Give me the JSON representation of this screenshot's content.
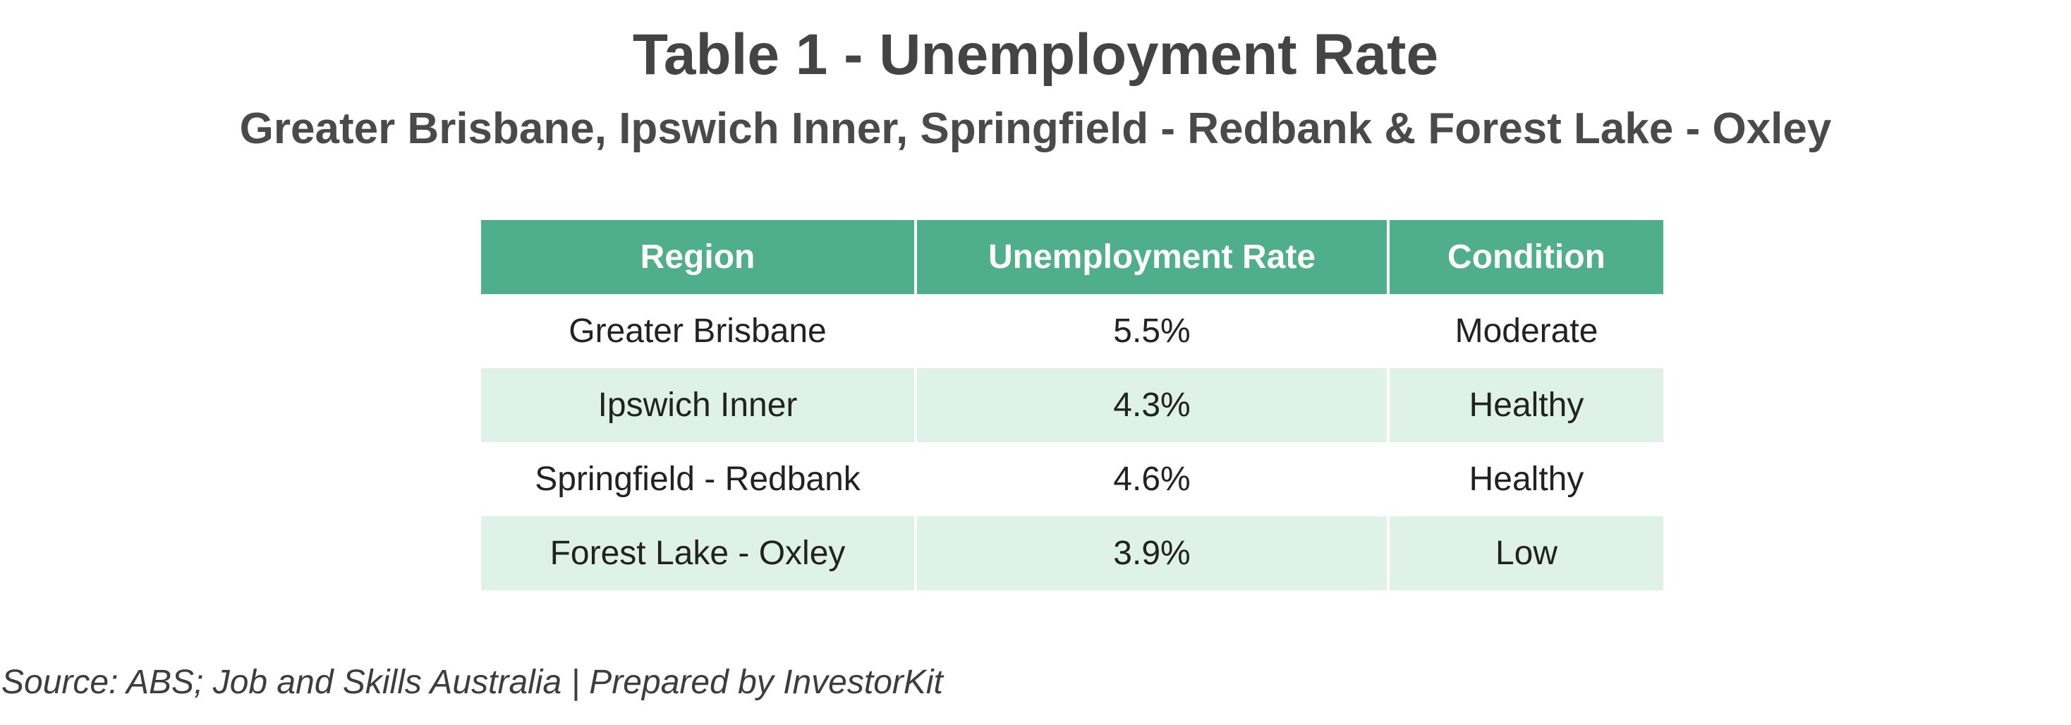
{
  "title": "Table 1 - Unemployment Rate",
  "subtitle": "Greater Brisbane, Ipswich Inner, Springfield - Redbank & Forest Lake - Oxley",
  "table": {
    "headers": [
      "Region",
      "Unemployment Rate",
      "Condition"
    ],
    "rows": [
      [
        "Greater Brisbane",
        "5.5%",
        "Moderate"
      ],
      [
        "Ipswich Inner",
        "4.3%",
        "Healthy"
      ],
      [
        "Springfield - Redbank",
        "4.6%",
        "Healthy"
      ],
      [
        "Forest Lake - Oxley",
        "3.9%",
        "Low"
      ]
    ]
  },
  "source": "Source: ABS; Job and Skills Australia | Prepared by InvestorKit",
  "colors": {
    "header_bg": "#4fae8b",
    "stripe_bg": "#dff2ea"
  }
}
